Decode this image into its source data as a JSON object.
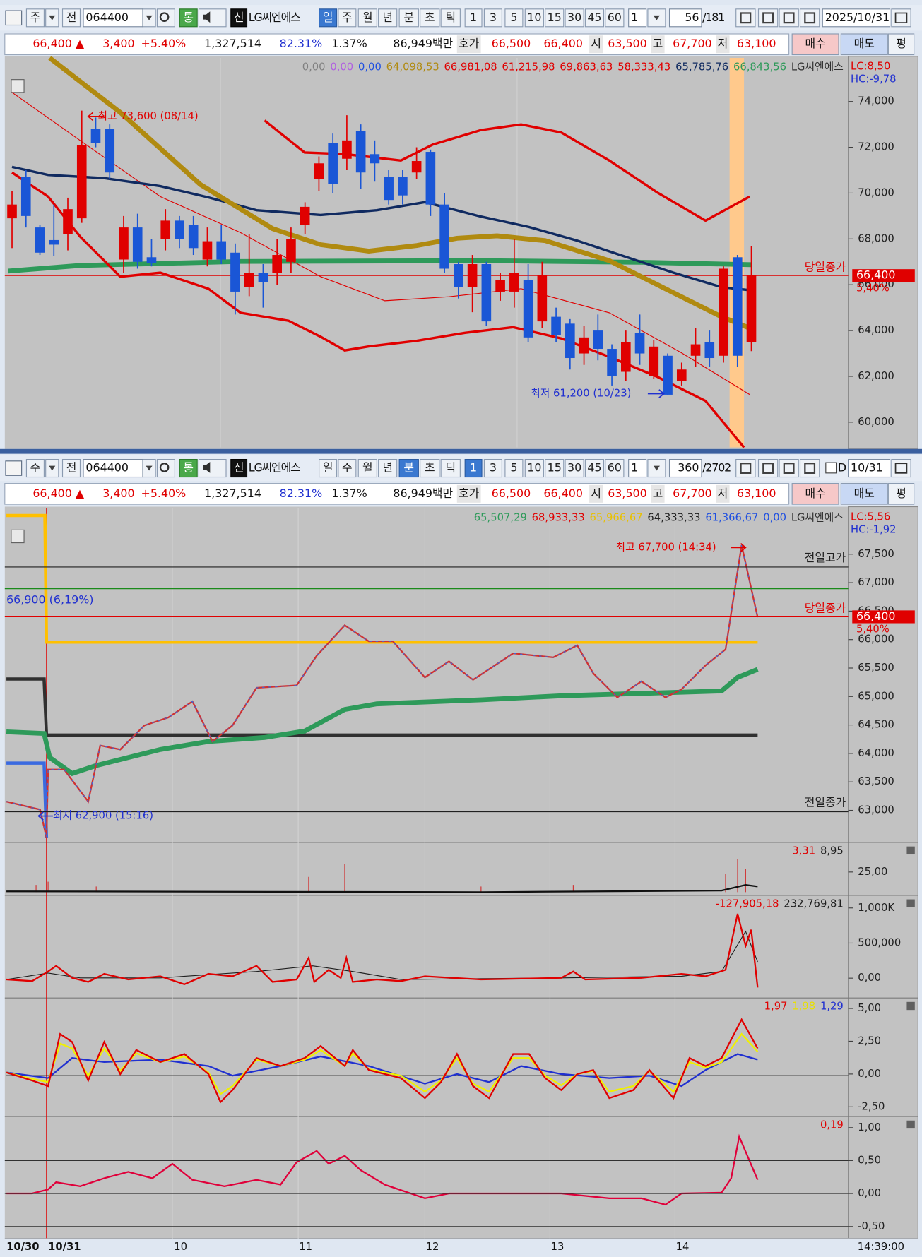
{
  "top": {
    "toolbar": [
      "주",
      "전",
      "064400",
      "통",
      "신",
      "LG씨엔에스",
      "일",
      "주",
      "월",
      "년",
      "분",
      "초",
      "틱",
      "1",
      "3",
      "5",
      "10",
      "15",
      "30",
      "45",
      "60",
      "1",
      "56",
      "/181",
      "2025/10/31"
    ],
    "info": [
      "66,400 ▲",
      "3,400",
      "+5.40%",
      "1,327,514",
      "82.31%",
      "1.37%",
      "86,949백만",
      "호가",
      "66,500",
      "66,400",
      "시",
      "63,500",
      "고",
      "67,700",
      "저",
      "63,100",
      "매수",
      "매도",
      "평"
    ],
    "chart": {
      "type": "candlestick",
      "legend": [
        {
          "text": "0,00",
          "color": "#808080"
        },
        {
          "text": "0,00",
          "color": "#b060e0"
        },
        {
          "text": "0,00",
          "color": "#2050e0"
        },
        {
          "text": "64,098,53",
          "color": "#b08a10"
        },
        {
          "text": "66,981,08",
          "color": "#e00000"
        },
        {
          "text": "61,215,98",
          "color": "#e00000"
        },
        {
          "text": "69,863,63",
          "color": "#e00000"
        },
        {
          "text": "58,333,43",
          "color": "#e00000"
        },
        {
          "text": "65,785,76",
          "color": "#102a60"
        },
        {
          "text": "66,843,56",
          "color": "#2e9a5a"
        },
        {
          "text": "LG씨엔에스",
          "color": "#303030"
        }
      ],
      "lc": "LC:8,50",
      "hc": "HC:-9,78",
      "ylim": [
        58900,
        75900
      ],
      "yticks": [
        {
          "value": 60000,
          "label": "60,000"
        },
        {
          "value": 62000,
          "label": "62,000"
        },
        {
          "value": 64000,
          "label": "64,000"
        },
        {
          "value": 66000,
          "label": "66,000"
        },
        {
          "value": 68000,
          "label": "68,000"
        },
        {
          "value": 70000,
          "label": "70,000"
        },
        {
          "value": 72000,
          "label": "72,000"
        },
        {
          "value": 74000,
          "label": "74,000"
        }
      ],
      "up_color": "#e00000",
      "down_color": "#1a56d6",
      "candles": {
        "open": [
          68900,
          70700,
          68500,
          67950,
          68200,
          68900,
          72800,
          72800,
          67100,
          68500,
          67200,
          68000,
          68800,
          68600,
          67100,
          67900,
          67400,
          65900,
          66500,
          66500,
          67000,
          68600,
          70600,
          72200,
          71500,
          72700,
          71700,
          70700,
          70700,
          70900,
          71800,
          69500,
          66900,
          65900,
          66900,
          65700,
          65700,
          66200,
          64400,
          64600,
          64300,
          63000,
          64000,
          63200,
          62200,
          63900,
          62000,
          62900,
          61800,
          62900,
          63500,
          62900,
          67200,
          63500
        ],
        "high": [
          70100,
          71000,
          68600,
          69500,
          69800,
          73600,
          73300,
          73000,
          69000,
          69100,
          68000,
          69300,
          69000,
          69000,
          68500,
          68600,
          67800,
          68200,
          66900,
          68000,
          68500,
          69600,
          71600,
          72600,
          73400,
          73000,
          72300,
          71000,
          71000,
          72000,
          71900,
          70000,
          67000,
          67300,
          67000,
          66500,
          68000,
          66900,
          67000,
          65000,
          64500,
          64200,
          64700,
          63400,
          64000,
          64700,
          63600,
          63000,
          62600,
          64100,
          64000,
          66800,
          67300,
          67700
        ],
        "low": [
          67600,
          68500,
          67300,
          67250,
          67500,
          68700,
          72000,
          70600,
          66500,
          66700,
          66800,
          67500,
          67600,
          67300,
          66800,
          66900,
          64700,
          65500,
          65000,
          66000,
          66500,
          68200,
          70100,
          70000,
          71000,
          70200,
          70500,
          69500,
          69500,
          70600,
          69000,
          66500,
          65400,
          64800,
          64200,
          65300,
          65000,
          63500,
          64100,
          63500,
          62300,
          62500,
          62700,
          61600,
          61800,
          62500,
          61900,
          61200,
          61600,
          62400,
          62400,
          62600,
          62400,
          63100
        ],
        "close": [
          69500,
          69000,
          67400,
          67750,
          69300,
          72100,
          72200,
          70900,
          68500,
          67000,
          66950,
          68800,
          68000,
          67600,
          67900,
          67100,
          65700,
          66500,
          66100,
          67300,
          68000,
          69400,
          71300,
          70400,
          72300,
          70900,
          71300,
          69700,
          69900,
          71400,
          69500,
          66700,
          65900,
          66900,
          64400,
          66200,
          66500,
          63700,
          66400,
          63800,
          62800,
          63700,
          63200,
          62000,
          63500,
          63000,
          63300,
          61200,
          62300,
          63400,
          62800,
          66700,
          62900,
          66400
        ]
      },
      "annotations": {
        "high": "최고 73,600 (08/14)",
        "low": "최저 61,200 (10/23)"
      },
      "reference_lines": [
        {
          "label": "당일종가",
          "value": 66400,
          "color": "#e00000",
          "label_color": "#e00000"
        }
      ],
      "price_box": {
        "price": "66,400",
        "change": "5,40%"
      }
    }
  },
  "bottom": {
    "toolbar": [
      "주",
      "전",
      "064400",
      "통",
      "신",
      "LG씨엔에스",
      "일",
      "주",
      "월",
      "년",
      "분",
      "초",
      "틱",
      "1",
      "3",
      "5",
      "10",
      "15",
      "30",
      "45",
      "60",
      "1",
      "360",
      "/2702",
      "D",
      "10/31"
    ],
    "info": [
      "66,400 ▲",
      "3,400",
      "+5.40%",
      "1,327,514",
      "82.31%",
      "1.37%",
      "86,949백만",
      "호가",
      "66,500",
      "66,400",
      "시",
      "63,500",
      "고",
      "67,700",
      "저",
      "63,100",
      "매수",
      "매도",
      "평"
    ],
    "chart": {
      "type": "line",
      "legend": [
        {
          "text": "65,507,29",
          "color": "#2e9a5a"
        },
        {
          "text": "68,933,33",
          "color": "#e00000"
        },
        {
          "text": "65,966,67",
          "color": "#e8c000"
        },
        {
          "text": "64,333,33",
          "color": "#202020"
        },
        {
          "text": "61,366,67",
          "color": "#2050e0"
        },
        {
          "text": "0,00",
          "color": "#2050e0"
        },
        {
          "text": "LG씨엔에스",
          "color": "#303030"
        }
      ],
      "lc": "LC:5,56",
      "hc": "HC:-1,92",
      "ylim": [
        62450,
        68250
      ],
      "yticks": [
        {
          "value": 63000,
          "label": "63,000"
        },
        {
          "value": 63500,
          "label": "63,500"
        },
        {
          "value": 64000,
          "label": "64,000"
        },
        {
          "value": 64500,
          "label": "64,500"
        },
        {
          "value": 65000,
          "label": "65,000"
        },
        {
          "value": 65500,
          "label": "65,500"
        },
        {
          "value": 66000,
          "label": "66,000"
        },
        {
          "value": 66500,
          "label": "66,500"
        },
        {
          "value": 67000,
          "label": "67,000"
        },
        {
          "value": 67500,
          "label": "67,500"
        }
      ],
      "annotations": {
        "high": "최고 67,700 (14:34)",
        "low": "최저 62,900 (15:16)"
      },
      "reference_lines": [
        {
          "label": "전일고가",
          "value": 67275,
          "color": "#202020",
          "label_color": "#202020"
        },
        {
          "label": "66,900 (6,19%)",
          "value": 66900,
          "color": "#1a8a1a",
          "label_color": "#2030d0"
        },
        {
          "label": "당일종가",
          "value": 66400,
          "color": "#e00000",
          "label_color": "#e00000"
        },
        {
          "label": "전일종가",
          "value": 62975,
          "color": "#202020",
          "label_color": "#202020"
        }
      ],
      "price_box": {
        "price": "66,400",
        "change": "5,40%"
      },
      "panels": [
        {
          "legend": [
            {
              "text": "3,31",
              "color": "#e00000"
            },
            {
              "text": "8,95",
              "color": "#202020"
            }
          ],
          "ylim": [
            -4,
            61
          ],
          "yticks": [
            {
              "value": 25,
              "label": "25,00"
            }
          ]
        },
        {
          "legend": [
            {
              "text": "-127,905,18",
              "color": "#e00000"
            },
            {
              "text": "232,769,81",
              "color": "#202020"
            }
          ],
          "ylim": [
            -270000,
            1157000
          ],
          "yticks": [
            {
              "value": 0,
              "label": "0,00"
            },
            {
              "value": 500000,
              "label": "500,000"
            },
            {
              "value": 1000000,
              "label": "1,000K"
            }
          ]
        },
        {
          "legend": [
            {
              "text": "1,97",
              "color": "#e00000"
            },
            {
              "text": "1,98",
              "color": "#e8e000"
            },
            {
              "text": "1,29",
              "color": "#2030d0"
            }
          ],
          "ylim": [
            -3.18,
            5.68
          ],
          "yticks": [
            {
              "value": -2.5,
              "label": "-2,50"
            },
            {
              "value": 0,
              "label": "0,00"
            },
            {
              "value": 2.5,
              "label": "2,50"
            },
            {
              "value": 5,
              "label": "5,00"
            }
          ]
        },
        {
          "legend": [
            {
              "text": "0,19",
              "color": "#e00000"
            }
          ],
          "ylim": [
            -0.668,
            1.144
          ],
          "yticks": [
            {
              "value": -0.5,
              "label": "-0,50"
            },
            {
              "value": 0,
              "label": "0,00"
            },
            {
              "value": 0.5,
              "label": "0,50"
            },
            {
              "value": 1,
              "label": "1,00"
            }
          ]
        }
      ],
      "x_labels": [
        "10/30",
        "10/31",
        "10",
        "11",
        "12",
        "13",
        "14"
      ],
      "time": "14:39:00"
    }
  }
}
